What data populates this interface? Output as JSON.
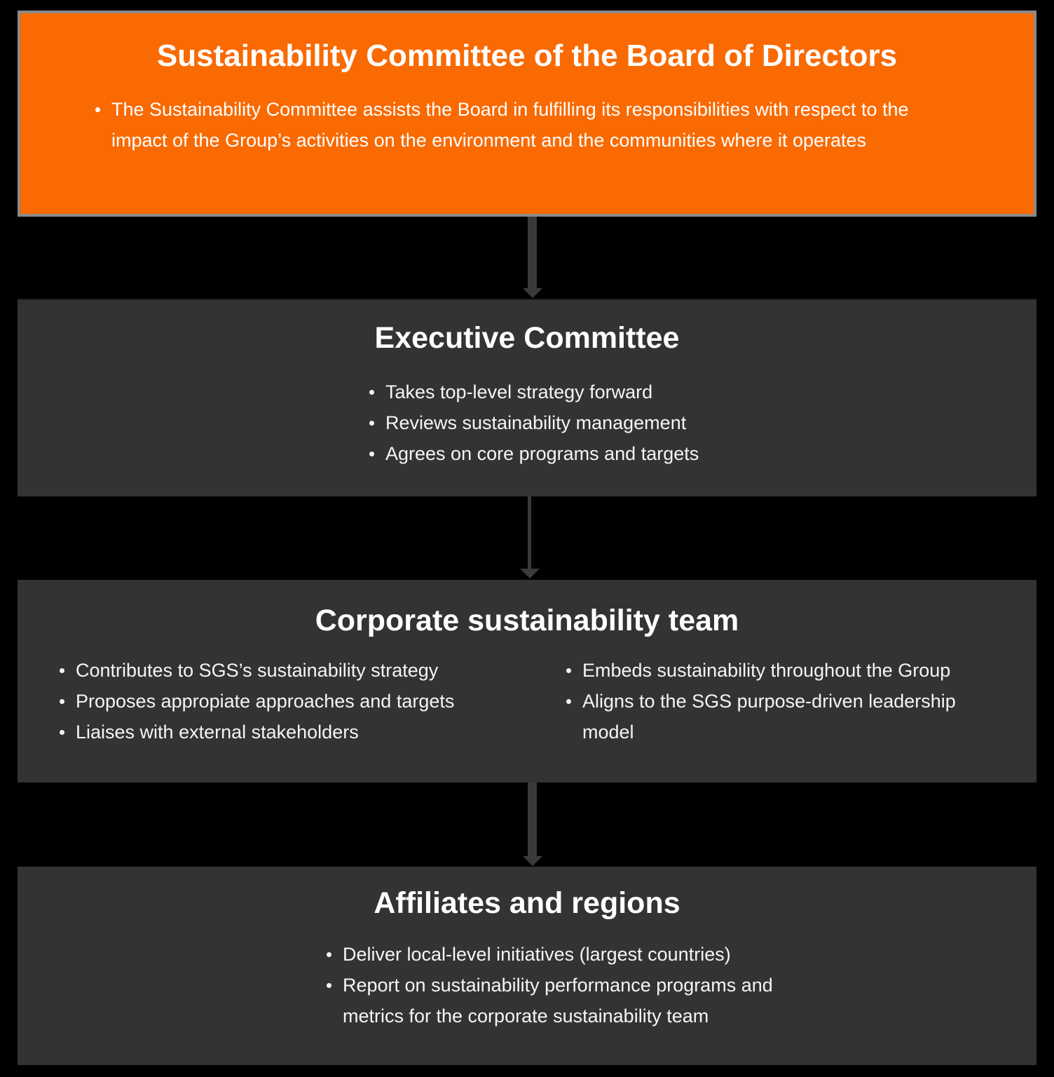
{
  "colors": {
    "background": "#000000",
    "accent_orange": "#F96A02",
    "box_dark": "#333332",
    "border_gray": "#8A8A8A",
    "connector_gray": "#3A3A38",
    "text": "#FFFFFF"
  },
  "box1": {
    "title": "Sustainability Committee of the Board of Directors",
    "bullets": [
      "The Sustainability Committee assists the Board in fulfilling its responsibilities with respect to the impact of the Group’s activities on the environment and the communities where it operates"
    ]
  },
  "box2": {
    "title": "Executive Committee",
    "bullets": [
      "Takes top-level strategy forward",
      "Reviews sustainability management",
      "Agrees on core programs and targets"
    ]
  },
  "box3": {
    "title": "Corporate sustainability team",
    "left_bullets": [
      "Contributes to SGS’s sustainability strategy",
      "Proposes appropiate approaches and targets",
      "Liaises with external stakeholders"
    ],
    "right_bullets": [
      "Embeds sustainability throughout the Group",
      "Aligns to the SGS purpose-driven leadership model"
    ]
  },
  "box4": {
    "title": "Affiliates and regions",
    "bullets": [
      "Deliver local-level initiatives (largest countries)",
      "Report on sustainability performance programs and metrics for the corporate sustainability team"
    ]
  }
}
